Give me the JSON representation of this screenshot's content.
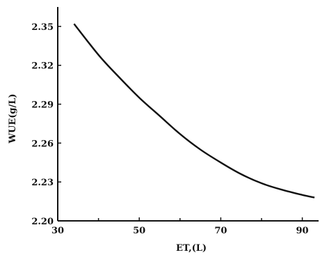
{
  "chart_data": {
    "type": "line",
    "title": "",
    "xlabel": "ET,(L)",
    "ylabel": "WUE(g/L)",
    "xlim": [
      30,
      94
    ],
    "ylim": [
      2.2,
      2.365
    ],
    "x_ticks": [
      30,
      50,
      70,
      90
    ],
    "x_tick_labels": [
      "30",
      "50",
      "70",
      "90"
    ],
    "y_ticks": [
      2.2,
      2.23,
      2.26,
      2.29,
      2.32,
      2.35
    ],
    "y_tick_labels": [
      "2.20",
      "2.23",
      "2.26",
      "2.29",
      "2.32",
      "2.35"
    ],
    "grid": false,
    "legend": "none",
    "series": [
      {
        "x": [
          34,
          40,
          45,
          50,
          55,
          60,
          65,
          70,
          75,
          80,
          85,
          90,
          93
        ],
        "y": [
          2.352,
          2.328,
          2.311,
          2.295,
          2.281,
          2.267,
          2.255,
          2.245,
          2.236,
          2.229,
          2.224,
          2.22,
          2.218
        ]
      }
    ]
  }
}
